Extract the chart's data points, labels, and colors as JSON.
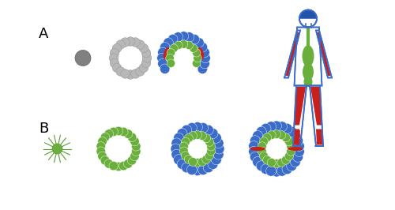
{
  "background_color": "#ffffff",
  "colors": {
    "gray_dark": "#808080",
    "gray_light": "#b8b8b8",
    "blue": "#3A6CC8",
    "green": "#6AAF3C",
    "red": "#C8201A",
    "white": "#ffffff",
    "black": "#222222",
    "spiky_green": "#5a9e30",
    "head_blue": "#2255aa"
  },
  "figsize": [
    5.0,
    2.66
  ],
  "dpi": 100,
  "xlim": [
    0,
    10
  ],
  "ylim": [
    0,
    5.32
  ]
}
